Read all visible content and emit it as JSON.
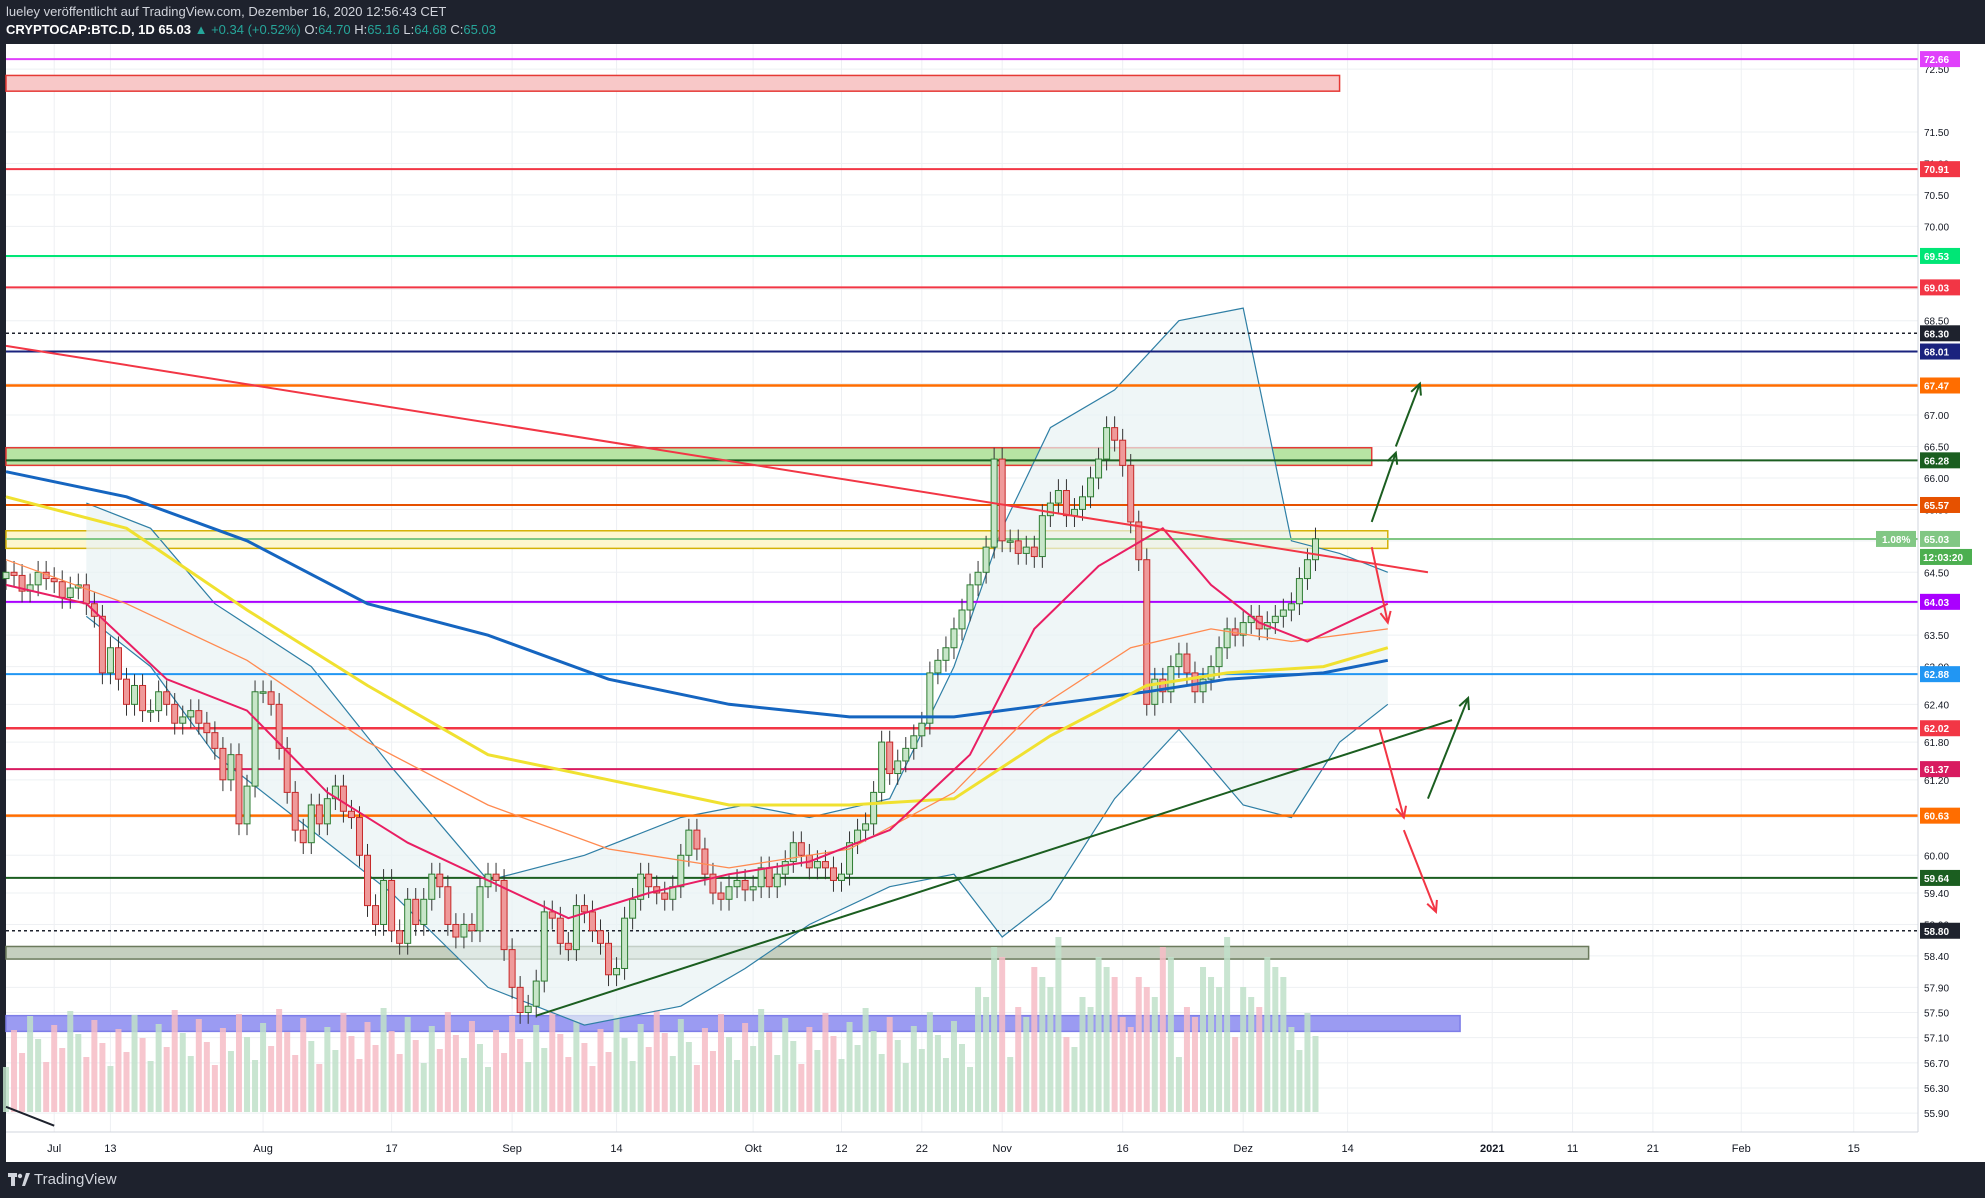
{
  "header": {
    "publish_line": "lueley veröffentlicht auf TradingView.com, Dezember 16, 2020 12:56:43 CET",
    "symbol": "CRYPTOCAP:BTC.D, 1D",
    "last": "65.03",
    "change": "▲ +0.34 (+0.52%)",
    "o_label": "O:",
    "o_val": "64.70",
    "h_label": "H:",
    "h_val": "65.16",
    "l_label": "L:",
    "l_val": "64.68",
    "c_label": "C:",
    "c_val": "65.03"
  },
  "footer": {
    "brand": "TradingView"
  },
  "colors": {
    "background": "#ffffff",
    "frame": "#1e222d",
    "up": "#26a69a",
    "down": "#ef5350",
    "bollinger": "#2f7fa5",
    "ema_red": "#e91e63",
    "ma_yellow": "#f0e130",
    "ma_blue": "#1565c0",
    "trendline_red": "#f23645",
    "trendline_green": "#1b5e20"
  },
  "chart_data": {
    "type": "candlestick",
    "symbol": "CRYPTOCAP:BTC.D",
    "timeframe": "1D",
    "ylim": [
      55.6,
      72.9
    ],
    "y_ticks": [
      "72.50",
      "71.50",
      "71.00",
      "70.50",
      "70.00",
      "69.50",
      "69.00",
      "68.50",
      "68.00",
      "67.50",
      "67.00",
      "66.50",
      "66.00",
      "65.50",
      "65.00",
      "64.50",
      "64.00",
      "63.50",
      "63.00",
      "62.40",
      "61.80",
      "61.20",
      "60.60",
      "60.00",
      "59.40",
      "58.90",
      "58.40",
      "57.90",
      "57.50",
      "57.10",
      "56.70",
      "56.30",
      "55.90"
    ],
    "x_labels": [
      {
        "label": "Jul",
        "day": 6
      },
      {
        "label": "13",
        "day": 13
      },
      {
        "label": "Aug",
        "day": 32
      },
      {
        "label": "17",
        "day": 48
      },
      {
        "label": "Sep",
        "day": 63
      },
      {
        "label": "14",
        "day": 76
      },
      {
        "label": "Okt",
        "day": 93
      },
      {
        "label": "12",
        "day": 104
      },
      {
        "label": "22",
        "day": 114
      },
      {
        "label": "Nov",
        "day": 124
      },
      {
        "label": "16",
        "day": 139
      },
      {
        "label": "Dez",
        "day": 154
      },
      {
        "label": "14",
        "day": 167
      },
      {
        "label": "2021",
        "day": 185
      },
      {
        "label": "11",
        "day": 195
      },
      {
        "label": "21",
        "day": 205
      },
      {
        "label": "Feb",
        "day": 216
      },
      {
        "label": "15",
        "day": 230
      }
    ],
    "x_day_range": [
      0,
      238
    ],
    "closes": [
      64.5,
      64.45,
      64.2,
      64.3,
      64.5,
      64.4,
      64.35,
      64.1,
      64.25,
      64.3,
      64.0,
      63.8,
      62.9,
      63.3,
      62.8,
      62.4,
      62.7,
      62.3,
      62.3,
      62.6,
      62.4,
      62.1,
      62.2,
      62.3,
      62.1,
      61.95,
      61.7,
      61.2,
      61.6,
      60.5,
      61.1,
      62.6,
      62.6,
      62.4,
      61.7,
      61.0,
      60.4,
      60.2,
      60.8,
      60.5,
      60.9,
      61.1,
      60.7,
      60.6,
      60.0,
      59.2,
      58.9,
      59.6,
      58.8,
      58.6,
      59.3,
      58.9,
      59.3,
      59.7,
      59.5,
      58.9,
      58.7,
      58.9,
      58.8,
      59.5,
      59.7,
      59.6,
      58.5,
      57.9,
      57.5,
      57.6,
      58.0,
      59.1,
      59.0,
      58.6,
      58.5,
      59.2,
      59.1,
      58.8,
      58.6,
      58.1,
      58.2,
      59.0,
      59.3,
      59.7,
      59.5,
      59.4,
      59.3,
      59.5,
      60.0,
      60.4,
      60.1,
      59.7,
      59.4,
      59.3,
      59.5,
      59.6,
      59.45,
      59.5,
      59.8,
      59.5,
      59.7,
      59.9,
      60.2,
      60.0,
      59.8,
      59.9,
      59.8,
      59.6,
      59.7,
      60.2,
      60.4,
      60.5,
      61.0,
      61.8,
      61.3,
      61.5,
      61.7,
      61.9,
      62.1,
      62.9,
      63.1,
      63.3,
      63.6,
      63.9,
      64.3,
      64.5,
      64.9,
      66.3,
      65.0,
      65.0,
      64.8,
      64.9,
      64.75,
      65.4,
      65.6,
      65.8,
      65.4,
      65.5,
      65.7,
      66.0,
      66.3,
      66.8,
      66.6,
      66.2,
      65.3,
      64.7,
      62.4,
      62.8,
      62.6,
      63.0,
      63.2,
      62.9,
      62.6,
      62.8,
      63.0,
      63.3,
      63.6,
      63.5,
      63.7,
      63.8,
      63.6,
      63.7,
      63.8,
      63.9,
      64.0,
      64.4,
      64.7,
      65.03
    ],
    "overlays": {
      "bollinger_upper": [
        [
          10,
          65.6
        ],
        [
          18,
          65.2
        ],
        [
          26,
          64.0
        ],
        [
          38,
          63.0
        ],
        [
          48,
          61.4
        ],
        [
          60,
          59.6
        ],
        [
          72,
          60.0
        ],
        [
          84,
          60.6
        ],
        [
          92,
          60.8
        ],
        [
          100,
          60.6
        ],
        [
          110,
          60.9
        ],
        [
          118,
          63.0
        ],
        [
          124,
          65.2
        ],
        [
          130,
          66.8
        ],
        [
          138,
          67.4
        ],
        [
          146,
          68.5
        ],
        [
          154,
          68.7
        ],
        [
          160,
          65.0
        ],
        [
          166,
          64.8
        ],
        [
          172,
          64.5
        ]
      ],
      "bollinger_lower": [
        [
          10,
          63.8
        ],
        [
          18,
          63.0
        ],
        [
          26,
          61.6
        ],
        [
          38,
          60.4
        ],
        [
          48,
          59.4
        ],
        [
          60,
          57.9
        ],
        [
          72,
          57.3
        ],
        [
          84,
          57.6
        ],
        [
          92,
          58.2
        ],
        [
          100,
          58.9
        ],
        [
          110,
          59.5
        ],
        [
          118,
          59.7
        ],
        [
          124,
          58.7
        ],
        [
          130,
          59.3
        ],
        [
          138,
          60.9
        ],
        [
          146,
          62.0
        ],
        [
          154,
          60.8
        ],
        [
          160,
          60.6
        ],
        [
          166,
          61.8
        ],
        [
          172,
          62.4
        ]
      ],
      "ema_fast": [
        [
          0,
          64.3
        ],
        [
          10,
          64.0
        ],
        [
          20,
          62.8
        ],
        [
          30,
          62.3
        ],
        [
          40,
          61.0
        ],
        [
          50,
          60.2
        ],
        [
          60,
          59.6
        ],
        [
          70,
          59.0
        ],
        [
          80,
          59.4
        ],
        [
          90,
          59.7
        ],
        [
          100,
          59.9
        ],
        [
          110,
          60.4
        ],
        [
          120,
          61.6
        ],
        [
          128,
          63.6
        ],
        [
          136,
          64.6
        ],
        [
          144,
          65.2
        ],
        [
          150,
          64.3
        ],
        [
          156,
          63.7
        ],
        [
          162,
          63.4
        ],
        [
          172,
          64.0
        ]
      ],
      "ema_mid": [
        [
          0,
          64.7
        ],
        [
          15,
          64.0
        ],
        [
          30,
          63.1
        ],
        [
          45,
          61.8
        ],
        [
          60,
          60.8
        ],
        [
          75,
          60.1
        ],
        [
          90,
          59.8
        ],
        [
          105,
          60.1
        ],
        [
          118,
          61.0
        ],
        [
          128,
          62.3
        ],
        [
          140,
          63.3
        ],
        [
          150,
          63.6
        ],
        [
          160,
          63.4
        ],
        [
          172,
          63.6
        ]
      ],
      "ma_yellow": [
        [
          0,
          65.7
        ],
        [
          15,
          65.2
        ],
        [
          30,
          63.9
        ],
        [
          45,
          62.7
        ],
        [
          60,
          61.6
        ],
        [
          75,
          61.2
        ],
        [
          90,
          60.8
        ],
        [
          105,
          60.8
        ],
        [
          118,
          60.9
        ],
        [
          130,
          61.9
        ],
        [
          142,
          62.7
        ],
        [
          152,
          62.9
        ],
        [
          164,
          63.0
        ],
        [
          172,
          63.3
        ]
      ],
      "ma_blue": [
        [
          0,
          66.1
        ],
        [
          15,
          65.7
        ],
        [
          30,
          65.0
        ],
        [
          45,
          64.0
        ],
        [
          60,
          63.5
        ],
        [
          75,
          62.8
        ],
        [
          90,
          62.4
        ],
        [
          105,
          62.2
        ],
        [
          118,
          62.2
        ],
        [
          130,
          62.4
        ],
        [
          142,
          62.6
        ],
        [
          152,
          62.8
        ],
        [
          164,
          62.9
        ],
        [
          172,
          63.1
        ]
      ]
    },
    "levels": [
      {
        "value": 72.66,
        "label": "72.66",
        "color": "#e040fb"
      },
      {
        "value": 70.91,
        "label": "70.91",
        "color": "#f23645"
      },
      {
        "value": 69.53,
        "label": "69.53",
        "color": "#00e676"
      },
      {
        "value": 69.03,
        "label": "69.03",
        "color": "#f23645"
      },
      {
        "value": 68.3,
        "label": "68.30",
        "color": "#1e222d"
      },
      {
        "value": 68.01,
        "label": "68.01",
        "color": "#1a237e"
      },
      {
        "value": 67.47,
        "label": "67.47",
        "color": "#ff6d00"
      },
      {
        "value": 66.28,
        "label": "66.28",
        "color": "#1b5e20"
      },
      {
        "value": 65.57,
        "label": "65.57",
        "color": "#e65100"
      },
      {
        "value": 65.03,
        "label": "65.03",
        "color": "#81c784"
      },
      {
        "value": 64.03,
        "label": "64.03",
        "color": "#aa00ff"
      },
      {
        "value": 62.88,
        "label": "62.88",
        "color": "#2196f3"
      },
      {
        "value": 62.02,
        "label": "62.02",
        "color": "#f23645"
      },
      {
        "value": 61.37,
        "label": "61.37",
        "color": "#d81b60"
      },
      {
        "value": 60.63,
        "label": "60.63",
        "color": "#ff6d00"
      },
      {
        "value": 59.64,
        "label": "59.64",
        "color": "#1b5e20"
      },
      {
        "value": 58.8,
        "label": "58.80",
        "color": "#1e222d"
      }
    ],
    "price_tag": {
      "percent": "1.08%",
      "price": "65.03",
      "countdown": "12:03:20"
    }
  }
}
